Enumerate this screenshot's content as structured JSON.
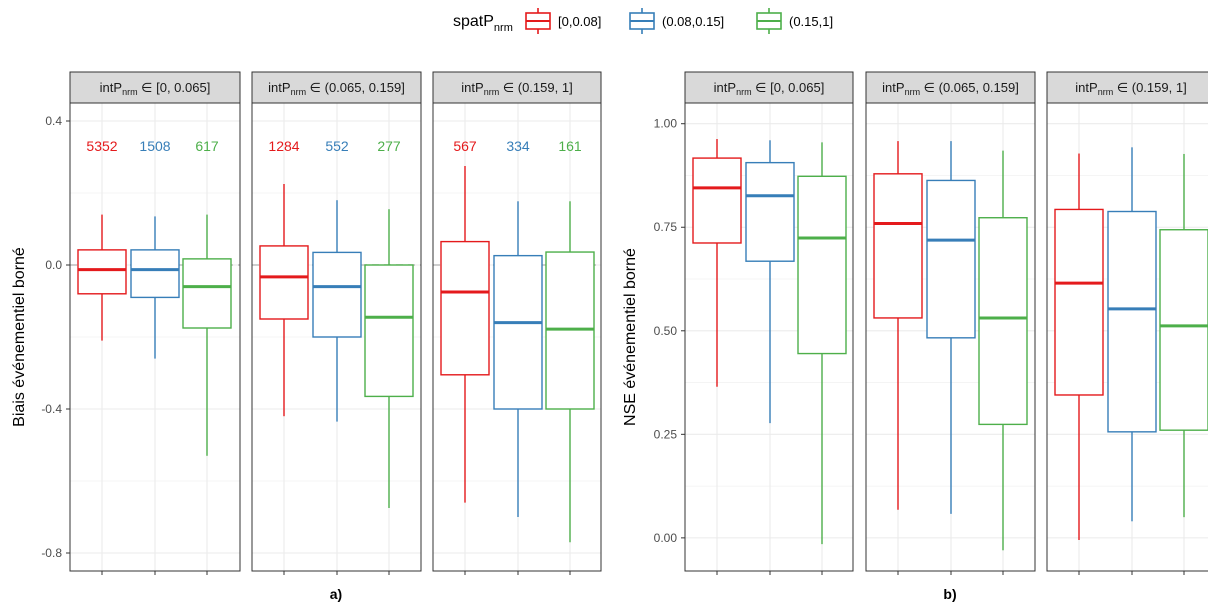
{
  "legend": {
    "title_main": "spatP",
    "title_sub": "nrm",
    "position": "top",
    "entries": [
      "[0,0.08]",
      "(0.08,0.15]",
      "(0.15,1]"
    ]
  },
  "colors": {
    "red": "#e41a1c",
    "blue": "#377eb8",
    "green": "#4daf4a",
    "strip_bg": "#d9d9d9",
    "grid": "#ebebeb",
    "zero_line": "#bdbdbd"
  },
  "facet_labels": [
    {
      "prefix": "intP",
      "sub": "nrm",
      "range": " ∈ [0, 0.065]"
    },
    {
      "prefix": "intP",
      "sub": "nrm",
      "range": " ∈ (0.065, 0.159]"
    },
    {
      "prefix": "intP",
      "sub": "nrm",
      "range": " ∈ (0.159, 1]"
    }
  ],
  "chart_data": [
    {
      "type": "boxplot",
      "panel_label": "a)",
      "ylabel": "Biais événementiel borné",
      "ylim": [
        -0.85,
        0.45
      ],
      "yticks": [
        0.4,
        0.0,
        -0.4,
        -0.8
      ],
      "ytick_labels": [
        "0.4",
        "0.0",
        "-0.4",
        "-0.8"
      ],
      "reference_line": 0,
      "grid": true,
      "facets": [
        {
          "counts": [
            "5352",
            "1508",
            "617"
          ],
          "boxes": [
            {
              "series": "[0,0.08]",
              "min": -0.21,
              "q1": -0.08,
              "median": -0.013,
              "q3": 0.042,
              "max": 0.14
            },
            {
              "series": "(0.08,0.15]",
              "min": -0.26,
              "q1": -0.09,
              "median": -0.013,
              "q3": 0.042,
              "max": 0.135
            },
            {
              "series": "(0.15,1]",
              "min": -0.53,
              "q1": -0.175,
              "median": -0.06,
              "q3": 0.017,
              "max": 0.14
            }
          ]
        },
        {
          "counts": [
            "1284",
            "552",
            "277"
          ],
          "boxes": [
            {
              "series": "[0,0.08]",
              "min": -0.42,
              "q1": -0.15,
              "median": -0.033,
              "q3": 0.053,
              "max": 0.225
            },
            {
              "series": "(0.08,0.15]",
              "min": -0.435,
              "q1": -0.2,
              "median": -0.06,
              "q3": 0.035,
              "max": 0.18
            },
            {
              "series": "(0.15,1]",
              "min": -0.675,
              "q1": -0.365,
              "median": -0.145,
              "q3": 0.0,
              "max": 0.155
            }
          ]
        },
        {
          "counts": [
            "567",
            "334",
            "161"
          ],
          "boxes": [
            {
              "series": "[0,0.08]",
              "min": -0.66,
              "q1": -0.305,
              "median": -0.075,
              "q3": 0.065,
              "max": 0.275
            },
            {
              "series": "(0.08,0.15]",
              "min": -0.7,
              "q1": -0.4,
              "median": -0.16,
              "q3": 0.026,
              "max": 0.177
            },
            {
              "series": "(0.15,1]",
              "min": -0.77,
              "q1": -0.4,
              "median": -0.178,
              "q3": 0.036,
              "max": 0.177
            }
          ]
        }
      ]
    },
    {
      "type": "boxplot",
      "panel_label": "b)",
      "ylabel": "NSE événementiel borné",
      "ylim": [
        -0.08,
        1.05
      ],
      "yticks": [
        1.0,
        0.75,
        0.5,
        0.25,
        0.0
      ],
      "ytick_labels": [
        "1.00",
        "0.75",
        "0.50",
        "0.25",
        "0.00"
      ],
      "grid": true,
      "facets": [
        {
          "boxes": [
            {
              "series": "[0,0.08]",
              "min": 0.365,
              "q1": 0.712,
              "median": 0.845,
              "q3": 0.917,
              "max": 0.963
            },
            {
              "series": "(0.08,0.15]",
              "min": 0.277,
              "q1": 0.668,
              "median": 0.826,
              "q3": 0.906,
              "max": 0.96
            },
            {
              "series": "(0.15,1]",
              "min": -0.015,
              "q1": 0.445,
              "median": 0.724,
              "q3": 0.873,
              "max": 0.955
            }
          ]
        },
        {
          "boxes": [
            {
              "series": "[0,0.08]",
              "min": 0.068,
              "q1": 0.531,
              "median": 0.759,
              "q3": 0.879,
              "max": 0.958
            },
            {
              "series": "(0.08,0.15]",
              "min": 0.058,
              "q1": 0.483,
              "median": 0.719,
              "q3": 0.863,
              "max": 0.958
            },
            {
              "series": "(0.15,1]",
              "min": -0.03,
              "q1": 0.274,
              "median": 0.531,
              "q3": 0.773,
              "max": 0.935
            }
          ]
        },
        {
          "boxes": [
            {
              "series": "[0,0.08]",
              "min": -0.005,
              "q1": 0.345,
              "median": 0.615,
              "q3": 0.793,
              "max": 0.928
            },
            {
              "series": "(0.08,0.15]",
              "min": 0.04,
              "q1": 0.256,
              "median": 0.553,
              "q3": 0.788,
              "max": 0.943
            },
            {
              "series": "(0.15,1]",
              "min": 0.05,
              "q1": 0.26,
              "median": 0.512,
              "q3": 0.744,
              "max": 0.927
            }
          ]
        }
      ]
    }
  ]
}
